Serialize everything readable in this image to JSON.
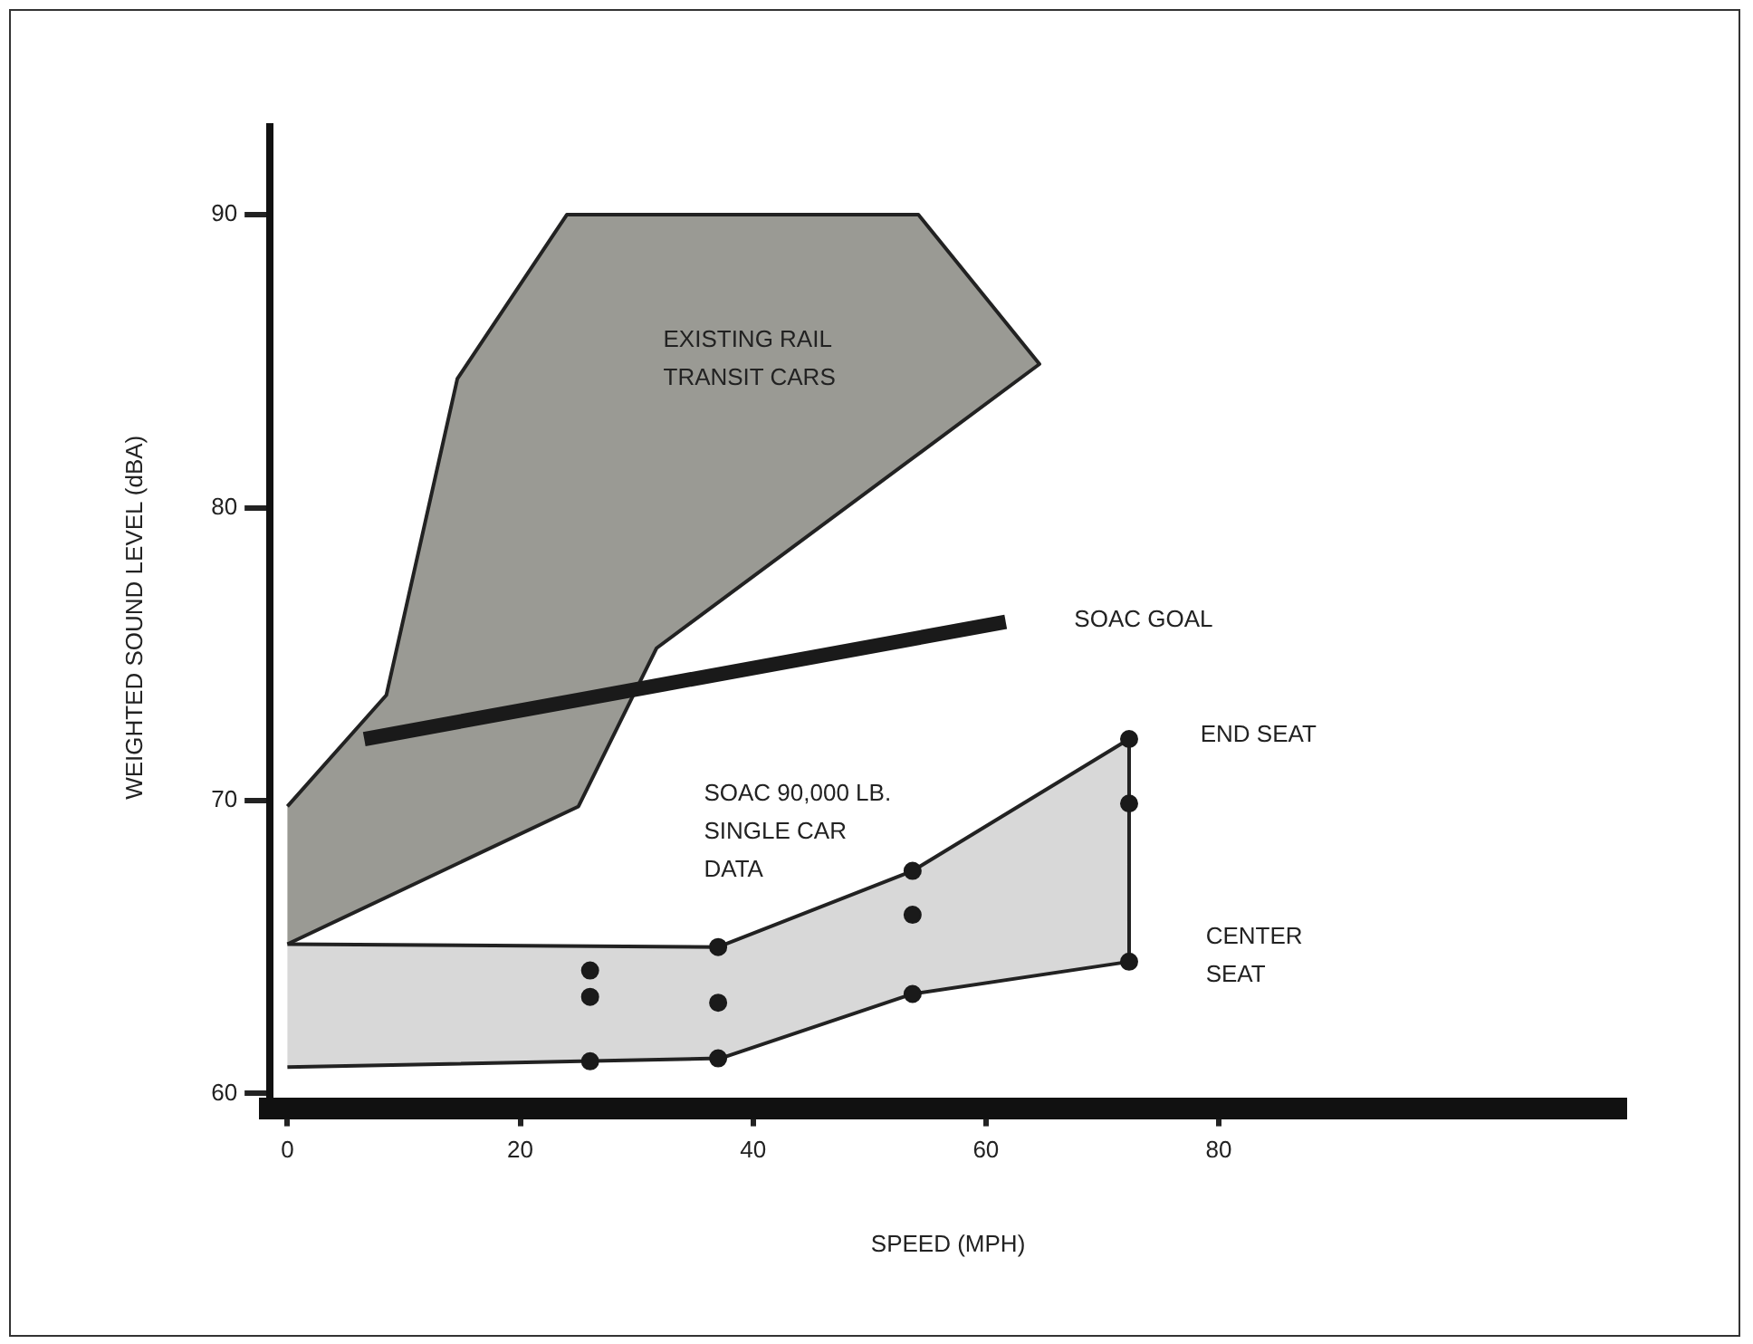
{
  "chart_data": {
    "type": "line",
    "xlabel": "SPEED (MPH)",
    "ylabel": "WEIGHTED SOUND LEVEL (dBA)",
    "xlim": [
      -1.5,
      115
    ],
    "ylim": [
      59.5,
      93
    ],
    "xticks": [
      0,
      20,
      40,
      60,
      80
    ],
    "yticks": [
      60,
      70,
      80,
      90
    ],
    "grid": false,
    "legend": false,
    "series": [
      {
        "type": "area",
        "color": "#9a9a94",
        "x": [
          0,
          8.5,
          14.6,
          24,
          54.2,
          64.6,
          31.7,
          25,
          0
        ],
        "values": [
          69.8,
          73.6,
          84.4,
          90,
          90,
          84.9,
          75.2,
          69.8,
          65.1
        ]
      },
      {
        "type": "area",
        "color": "#d8d8d8",
        "x": [
          0,
          37,
          53.7,
          72.3,
          72.3,
          53.7,
          37.2,
          0
        ],
        "values": [
          65.1,
          65,
          67.6,
          72.1,
          64.5,
          63.4,
          61.2,
          60.9
        ]
      },
      {
        "type": "line",
        "color": "#1a1a1a",
        "x": [
          6.6,
          61.7
        ],
        "values": [
          72.1,
          76.1
        ]
      },
      {
        "type": "scatter",
        "color": "#1a1a1a",
        "marker": "circle",
        "x": [
          26,
          26,
          26,
          37,
          37,
          37,
          53.7,
          53.7,
          53.7,
          72.3,
          72.3,
          72.3
        ],
        "values": [
          64.2,
          63.3,
          61.1,
          65,
          63.1,
          61.2,
          67.6,
          66.1,
          63.4,
          72.1,
          69.9,
          64.5
        ]
      }
    ],
    "annotations": [
      "EXISTING RAIL\nTRANSIT CARS",
      "SOAC GOAL",
      "END SEAT",
      "SOAC 90,000 LB.\nSINGLE CAR\nDATA",
      "CENTER\nSEAT"
    ]
  }
}
